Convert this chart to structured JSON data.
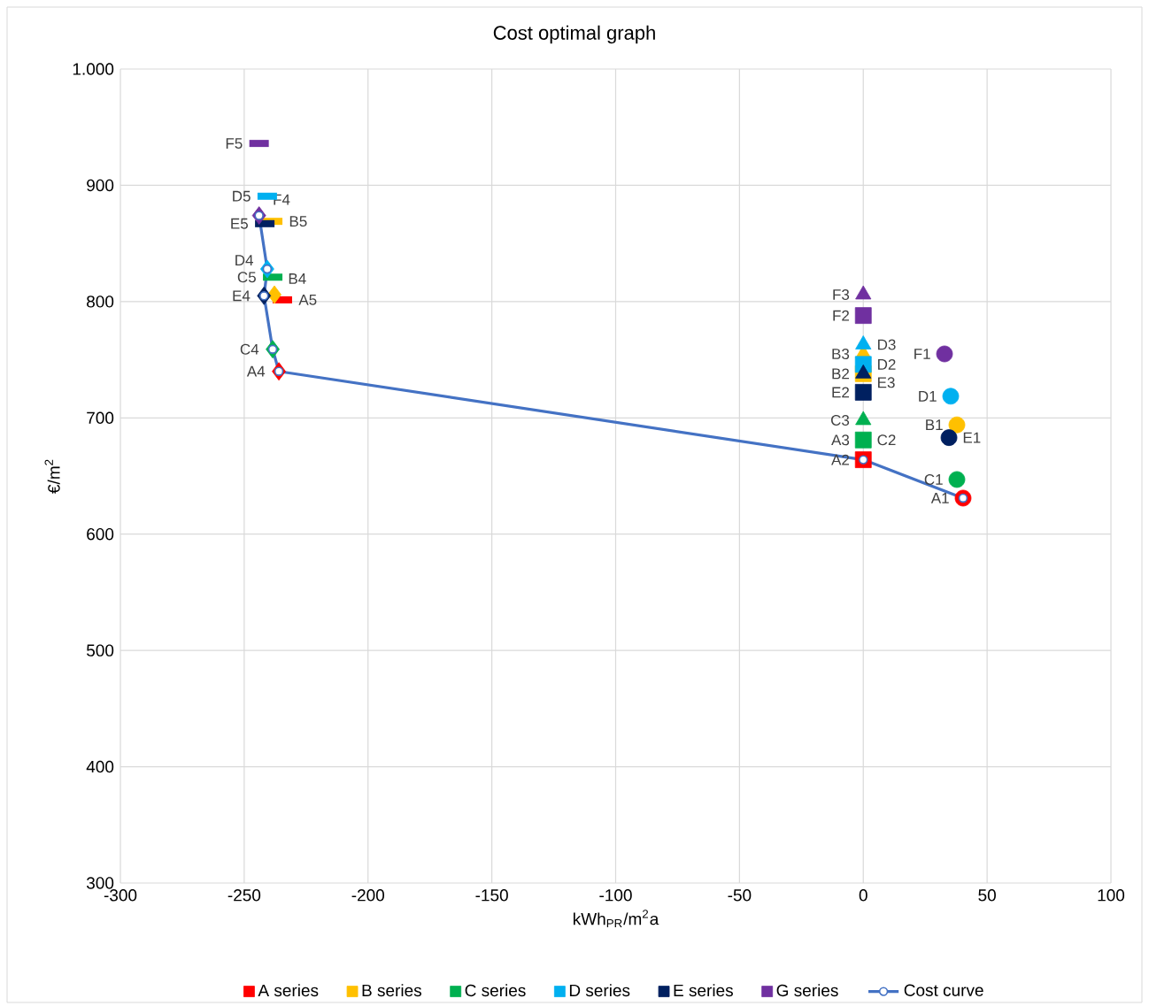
{
  "chart_data": {
    "type": "scatter",
    "title": "Cost optimal graph",
    "xlabel": "kWh$_{PR}$/m$^{2}$a",
    "ylabel": "€/m$^{2}$",
    "xlim": [
      -300,
      100
    ],
    "xticks": [
      -300,
      -250,
      -200,
      -150,
      -100,
      -50,
      0,
      50,
      100
    ],
    "ylim": [
      300,
      1000
    ],
    "yticks": [
      300,
      400,
      500,
      600,
      700,
      800,
      900,
      {
        "value": 1000,
        "label": "1.000"
      }
    ],
    "grid": true,
    "legend": "bottom",
    "series": [
      {
        "name": "A series",
        "color": "#ff0000",
        "x": [
          40.3,
          0,
          null,
          -236,
          -234.6
        ],
        "values": [
          631,
          664,
          null,
          740,
          801.5
        ],
        "marker": [
          "circle",
          "square",
          "triangle",
          "diamond",
          "dash"
        ],
        "value_labels": [
          "A1",
          "A2",
          null,
          "A4",
          "A5"
        ]
      },
      {
        "name": "B series",
        "color": "#ffc000",
        "x": [
          37.8,
          0,
          0,
          -237.8,
          -238.5
        ],
        "values": [
          694,
          738,
          755,
          806,
          869
        ],
        "marker": [
          "circle",
          "square",
          "triangle",
          "diamond",
          "dash"
        ],
        "value_labels": [
          "B1",
          "B2",
          "B3",
          "B4",
          "B5"
        ]
      },
      {
        "name": "C series",
        "color": "#00b050",
        "x": [
          37.8,
          0,
          0,
          -238.5,
          -238.5
        ],
        "values": [
          647,
          681,
          698,
          759,
          821
        ],
        "marker": [
          "circle",
          "square",
          "triangle",
          "diamond",
          "dash"
        ],
        "value_labels": [
          "C1",
          "C2",
          "C3",
          "C4",
          "C5"
        ]
      },
      {
        "name": "D series",
        "color": "#00b0f0",
        "x": [
          35.3,
          0,
          0,
          -240.7,
          -240.7
        ],
        "values": [
          718.6,
          746,
          763,
          828,
          890.6
        ],
        "marker": [
          "circle",
          "square",
          "triangle",
          "diamond",
          "dash"
        ],
        "value_labels": [
          "D1",
          "D2",
          "D3",
          "D4",
          "D5"
        ]
      },
      {
        "name": "E series",
        "color": "#002060",
        "x": [
          34.6,
          0,
          0,
          -242,
          -241.7
        ],
        "values": [
          683,
          722,
          738,
          805,
          867
        ],
        "marker": [
          "circle",
          "square",
          "triangle",
          "diamond",
          "dash"
        ],
        "value_labels": [
          "E1",
          "E2",
          "E3",
          "E4",
          "E5"
        ]
      },
      {
        "name": "G series",
        "color": "#7030a0",
        "x": [
          32.8,
          0,
          0,
          -244,
          -244
        ],
        "values": [
          755,
          788,
          806,
          874,
          936
        ],
        "marker": [
          "circle",
          "square",
          "triangle",
          "diamond",
          "dash"
        ],
        "value_labels": [
          "F1",
          "F2",
          "F3",
          "F4",
          "F5"
        ]
      },
      {
        "name": "Cost curve",
        "type": "line",
        "color": "#4472c4",
        "x": [
          40.3,
          0,
          -236,
          -238.5,
          -242,
          -240.7,
          -244
        ],
        "values": [
          631,
          664,
          740,
          759,
          805,
          828,
          874
        ],
        "marker": "circle"
      }
    ],
    "annotations": [
      {
        "text": "A3",
        "x": 0,
        "y": 681
      }
    ]
  }
}
